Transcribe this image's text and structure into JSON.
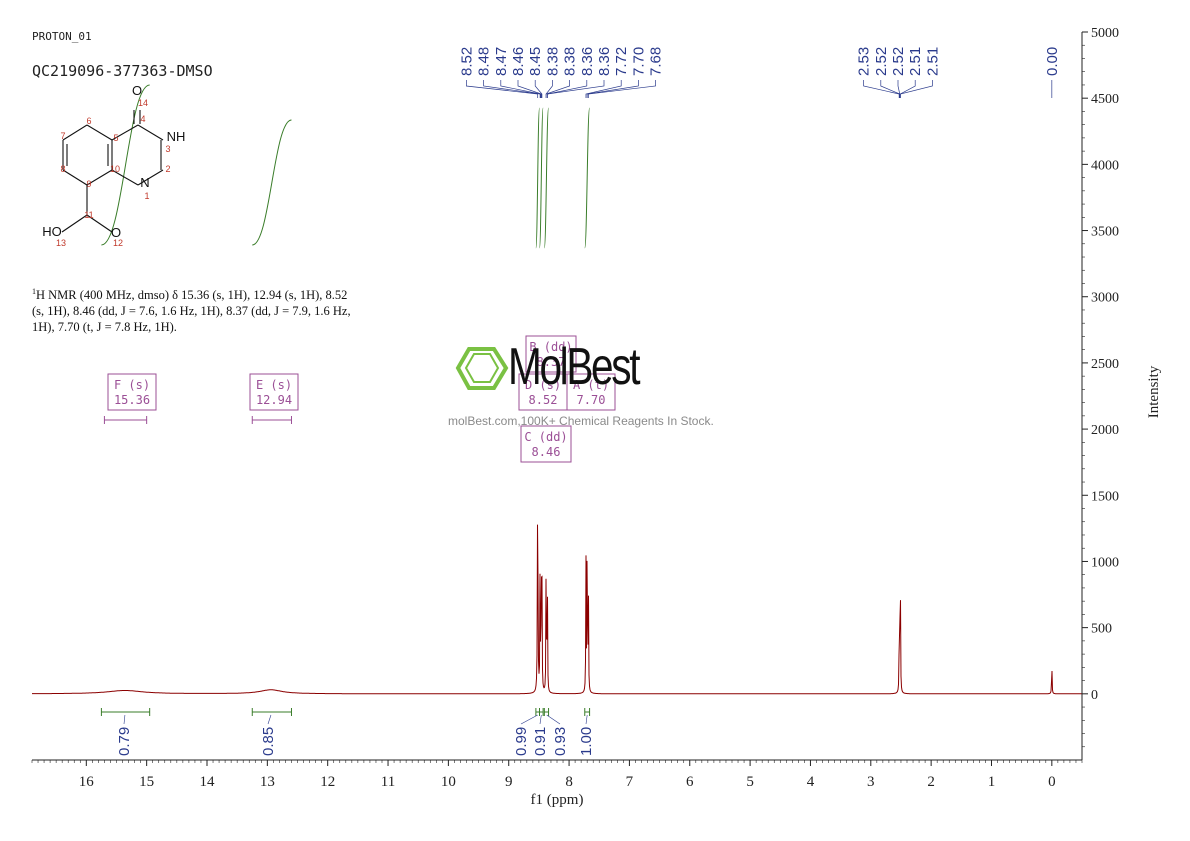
{
  "header": {
    "experiment": "PROTON_01",
    "sample": "QC219096-377363-DMSO"
  },
  "description": {
    "nucleus_sup": "1",
    "line": "H NMR (400 MHz, dmso) δ 15.36 (s, 1H), 12.94 (s, 1H), 8.52 (s, 1H), 8.46 (dd, J = 7.6, 1.6 Hz, 1H), 8.37 (dd, J = 7.9, 1.6 Hz, 1H), 7.70 (t, J = 7.8 Hz, 1H)."
  },
  "watermark": {
    "brand": "MolBest",
    "tagline": "molBest.com,100K+ Chemical Reagents In Stock."
  },
  "structure": {
    "atoms": [
      "O",
      "NH",
      "N",
      "HO",
      "O"
    ],
    "numbers": [
      "14",
      "4",
      "7",
      "6",
      "5",
      "3",
      "2",
      "10",
      "8",
      "9",
      "1",
      "11",
      "13",
      "12"
    ]
  },
  "colors": {
    "spectrum": "#8b0000",
    "peaklabel": "#2a3a8c",
    "integral": "#3a7d2a",
    "multiplet": "#9b4f96",
    "axis": "#222222",
    "watermark_green": "#7ac143"
  },
  "chart_data": {
    "type": "line",
    "xlabel": "f1 (ppm)",
    "ylabel": "Intensity",
    "xlim": [
      16.9,
      -0.5
    ],
    "xlim_note": "axis reversed (decreasing ppm to the right)",
    "ylim": [
      -500,
      5000
    ],
    "x_ticks": [
      16,
      15,
      14,
      13,
      12,
      11,
      10,
      9,
      8,
      7,
      6,
      5,
      4,
      3,
      2,
      1,
      0
    ],
    "y_ticks": [
      5000,
      4500,
      4000,
      3500,
      3000,
      2500,
      2000,
      1500,
      1000,
      500,
      0
    ],
    "peaks": [
      {
        "ppm": 15.36,
        "intensity": 25,
        "width": 0.35
      },
      {
        "ppm": 12.94,
        "intensity": 30,
        "width": 0.22
      },
      {
        "ppm": 8.52,
        "intensity": 1760,
        "width": 0.005
      },
      {
        "ppm": 8.48,
        "intensity": 980,
        "width": 0.004
      },
      {
        "ppm": 8.46,
        "intensity": 1010,
        "width": 0.004
      },
      {
        "ppm": 8.45,
        "intensity": 840,
        "width": 0.004
      },
      {
        "ppm": 8.38,
        "intensity": 1100,
        "width": 0.004
      },
      {
        "ppm": 8.36,
        "intensity": 980,
        "width": 0.004
      },
      {
        "ppm": 7.72,
        "intensity": 1000,
        "width": 0.004
      },
      {
        "ppm": 7.7,
        "intensity": 1400,
        "width": 0.004
      },
      {
        "ppm": 7.68,
        "intensity": 860,
        "width": 0.004
      },
      {
        "ppm": 2.53,
        "intensity": 300,
        "width": 0.004
      },
      {
        "ppm": 2.52,
        "intensity": 600,
        "width": 0.004
      },
      {
        "ppm": 2.51,
        "intensity": 850,
        "width": 0.004
      },
      {
        "ppm": 0.0,
        "intensity": 260,
        "width": 0.004
      }
    ],
    "peak_labels_group1": [
      "8.52",
      "8.48",
      "8.47",
      "8.46",
      "8.45",
      "8.38",
      "8.38",
      "8.36",
      "8.36",
      "7.72",
      "7.70",
      "7.68"
    ],
    "peak_labels_group2": [
      "2.53",
      "2.52",
      "2.52",
      "2.51",
      "2.51"
    ],
    "peak_labels_group3": [
      "0.00"
    ],
    "multiplets": [
      {
        "letter": "F (s)",
        "value": "15.36",
        "from": 15.7,
        "to": 15.0
      },
      {
        "letter": "E (s)",
        "value": "12.94",
        "from": 13.25,
        "to": 12.6
      },
      {
        "letter": "B (dd)",
        "value": "8.37"
      },
      {
        "letter": "D (s)",
        "value": "8.52"
      },
      {
        "letter": "A (t)",
        "value": "7.70"
      },
      {
        "letter": "C (dd)",
        "value": "8.46"
      }
    ],
    "integrals": [
      {
        "value": "0.79",
        "from": 15.75,
        "to": 14.95,
        "center": 15.36
      },
      {
        "value": "0.85",
        "from": 13.25,
        "to": 12.6,
        "center": 12.94
      },
      {
        "value": "0.99",
        "from": 8.55,
        "to": 8.49,
        "center": 8.52
      },
      {
        "value": "0.91",
        "from": 8.49,
        "to": 8.43,
        "center": 8.46
      },
      {
        "value": "0.93",
        "from": 8.41,
        "to": 8.34,
        "center": 8.37
      },
      {
        "value": "1.00",
        "from": 7.74,
        "to": 7.66,
        "center": 7.7
      }
    ]
  }
}
